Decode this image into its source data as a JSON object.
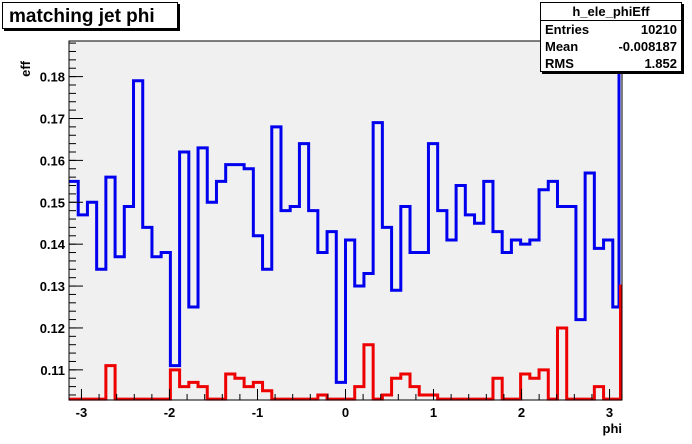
{
  "title": "matching jet phi",
  "stats": {
    "name": "h_ele_phiEff",
    "rows": [
      {
        "label": "Entries",
        "value": "10210"
      },
      {
        "label": "Mean",
        "value": "-0.008187"
      },
      {
        "label": "RMS",
        "value": "1.852"
      }
    ]
  },
  "colors": {
    "blue": "#0000ee",
    "red": "#ee0000",
    "frame_fill": "#f0f0f0"
  },
  "chart_data": {
    "type": "line",
    "title": "matching jet phi",
    "xlabel": "phi",
    "ylabel": "eff",
    "xlim": [
      -3.1416,
      3.1416
    ],
    "ylim": [
      0.1028,
      0.1885
    ],
    "xticks": [
      -3,
      -2,
      -1,
      0,
      1,
      2,
      3
    ],
    "yticks": [
      0.11,
      0.12,
      0.13,
      0.14,
      0.15,
      0.16,
      0.17,
      0.18
    ],
    "grid": false,
    "bins": 60,
    "series": [
      {
        "color": "blue",
        "values": [
          0.155,
          0.147,
          0.15,
          0.134,
          0.156,
          0.137,
          0.149,
          0.179,
          0.144,
          0.137,
          0.138,
          0.111,
          0.162,
          0.125,
          0.163,
          0.15,
          0.155,
          0.159,
          0.159,
          0.158,
          0.142,
          0.134,
          0.168,
          0.148,
          0.149,
          0.164,
          0.148,
          0.138,
          0.143,
          0.107,
          0.141,
          0.13,
          0.133,
          0.169,
          0.144,
          0.129,
          0.149,
          0.138,
          0.138,
          0.164,
          0.148,
          0.141,
          0.154,
          0.147,
          0.145,
          0.155,
          0.143,
          0.138,
          0.141,
          0.14,
          0.141,
          0.153,
          0.155,
          0.149,
          0.149,
          0.122,
          0.157,
          0.139,
          0.141,
          0.125
        ]
      },
      {
        "color": "red",
        "values": [
          0.103,
          0.103,
          0.103,
          0.103,
          0.111,
          0.103,
          0.103,
          0.103,
          0.103,
          0.103,
          0.103,
          0.11,
          0.106,
          0.107,
          0.106,
          0.103,
          0.103,
          0.109,
          0.108,
          0.106,
          0.107,
          0.105,
          0.103,
          0.103,
          0.103,
          0.103,
          0.103,
          0.104,
          0.103,
          0.103,
          0.103,
          0.106,
          0.116,
          0.103,
          0.104,
          0.108,
          0.109,
          0.106,
          0.104,
          0.104,
          0.103,
          0.103,
          0.103,
          0.103,
          0.103,
          0.103,
          0.108,
          0.103,
          0.103,
          0.109,
          0.108,
          0.11,
          0.103,
          0.12,
          0.103,
          0.103,
          0.103,
          0.106,
          0.103,
          0.103
        ]
      }
    ],
    "overflow_blue": 0.185,
    "overflow_red": 0.13
  }
}
